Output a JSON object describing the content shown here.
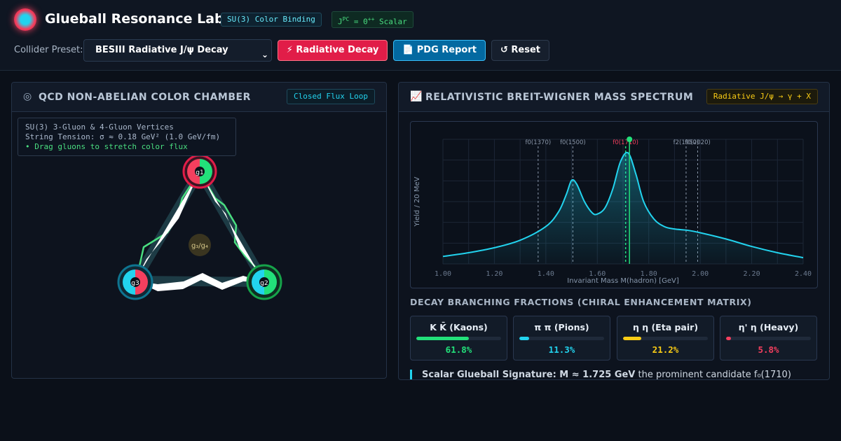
{
  "app": {
    "title": "Glueball Resonance Lab",
    "badge_binding": "SU(3) Color Binding",
    "badge_jpc_prefix": "J",
    "badge_jpc_sup": "PC",
    "badge_jpc_mid": " = 0",
    "badge_jpc_sup2": "++",
    "badge_jpc_suffix": " Scalar"
  },
  "toolbar": {
    "preset_label": "Collider Preset:",
    "preset_value": "BESIII Radiative J/ψ Decay",
    "radiative_label": "⚡ Radiative Decay",
    "pdg_label": "📄 PDG Report",
    "reset_label": "↺ Reset"
  },
  "left_panel": {
    "title": "QCD NON-ABELIAN COLOR CHAMBER",
    "tag": "Closed Flux Loop",
    "info_line1": "SU(3) 3-Gluon & 4-Gluon Vertices",
    "info_line2": "String Tension: σ ≈ 0.18 GeV² (1.0 GeV/fm)",
    "info_line3": "• Drag gluons to stretch color flux",
    "gluons": [
      "g1",
      "g2",
      "g3"
    ],
    "vertex_label": "g₃/g₄"
  },
  "right_panel": {
    "title": "RELATIVISTIC BREIT-WIGNER MASS SPECTRUM",
    "tag": "Radiative J/ψ → γ + X",
    "section_title": "DECAY BRANCHING FRACTIONS (CHIRAL ENHANCEMENT MATRIX)",
    "note_bold": "Scalar Glueball Signature: M ≈ 1.725 GeV",
    "note_rest": " the prominent candidate f₀(1710)"
  },
  "chart_data": {
    "type": "line",
    "xlabel": "Invariant Mass M(hadron) [GeV]",
    "ylabel": "Yield / 20 MeV",
    "xlim": [
      1.0,
      2.4
    ],
    "ylim": [
      0,
      1.0
    ],
    "x_ticks": [
      "1.00",
      "1.20",
      "1.40",
      "1.60",
      "1.80",
      "2.00",
      "2.20",
      "2.40"
    ],
    "grid": true,
    "series": [
      {
        "x": [
          1.0,
          1.1,
          1.2,
          1.3,
          1.4,
          1.45,
          1.48,
          1.5,
          1.52,
          1.55,
          1.58,
          1.6,
          1.63,
          1.66,
          1.69,
          1.72,
          1.75,
          1.78,
          1.82,
          1.86,
          1.9,
          1.95,
          2.0,
          2.1,
          2.2,
          2.3,
          2.4
        ],
        "values": [
          0.06,
          0.09,
          0.13,
          0.19,
          0.3,
          0.42,
          0.56,
          0.67,
          0.64,
          0.5,
          0.41,
          0.4,
          0.45,
          0.6,
          0.82,
          0.89,
          0.72,
          0.5,
          0.36,
          0.3,
          0.28,
          0.27,
          0.25,
          0.2,
          0.14,
          0.09,
          0.05
        ]
      }
    ],
    "markers": [
      {
        "label": "f0(1370)",
        "x": 1.37,
        "highlight": false
      },
      {
        "label": "f0(1500)",
        "x": 1.505,
        "highlight": false
      },
      {
        "label": "f0(1710)",
        "x": 1.71,
        "highlight": true
      },
      {
        "label": "f2(1950)",
        "x": 1.945,
        "highlight": false
      },
      {
        "label": "f0(2020)",
        "x": 1.99,
        "highlight": false
      }
    ],
    "cursor_x": 1.725
  },
  "branching": [
    {
      "name": "K K̄ (Kaons)",
      "value_text": "61.8%",
      "fraction": 0.618,
      "color": "#22e07a"
    },
    {
      "name": "π π (Pions)",
      "value_text": "11.3%",
      "fraction": 0.113,
      "color": "#22d3ee"
    },
    {
      "name": "η η (Eta pair)",
      "value_text": "21.2%",
      "fraction": 0.212,
      "color": "#facc15"
    },
    {
      "name": "η' η (Heavy)",
      "value_text": "5.8%",
      "fraction": 0.058,
      "color": "#f43f5e"
    }
  ]
}
